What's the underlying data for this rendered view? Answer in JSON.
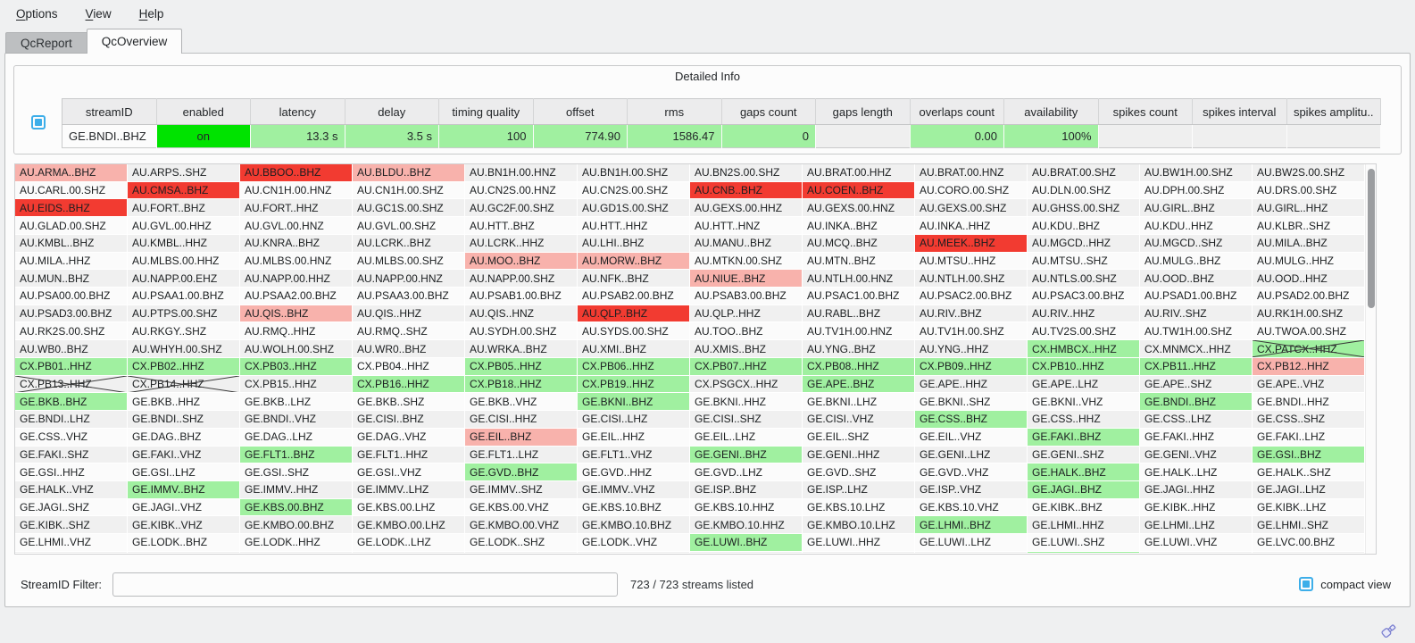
{
  "menu": {
    "items": [
      {
        "label": "Options"
      },
      {
        "label": "View"
      },
      {
        "label": "Help"
      }
    ]
  },
  "tabs": [
    {
      "label": "QcReport",
      "active": false
    },
    {
      "label": "QcOverview",
      "active": true
    }
  ],
  "detailed_info": {
    "title": "Detailed Info",
    "columns": [
      "streamID",
      "enabled",
      "latency",
      "delay",
      "timing quality",
      "offset",
      "rms",
      "gaps count",
      "gaps length",
      "overlaps count",
      "availability",
      "spikes count",
      "spikes interval",
      "spikes amplitu.."
    ],
    "row": {
      "streamID": "GE.BNDI..BHZ",
      "values": [
        {
          "text": "on",
          "state": "on"
        },
        {
          "text": "13.3 s",
          "state": "good"
        },
        {
          "text": "3.5 s",
          "state": "good"
        },
        {
          "text": "100",
          "state": "good"
        },
        {
          "text": "774.90",
          "state": "good"
        },
        {
          "text": "1586.47",
          "state": "good"
        },
        {
          "text": "0",
          "state": "good"
        },
        {
          "text": "",
          "state": "none"
        },
        {
          "text": "0.00",
          "state": "good"
        },
        {
          "text": "100%",
          "state": "good"
        },
        {
          "text": "",
          "state": "none"
        },
        {
          "text": "",
          "state": "none"
        },
        {
          "text": "",
          "state": "none"
        }
      ]
    }
  },
  "grid": {
    "state_legend": {
      "g": "good-green",
      "r": "alert-red",
      "p": "warn-pink",
      "x": "crossed-disabled",
      "gx": "good-green-crossed"
    },
    "rows": [
      [
        [
          "AU.ARMA..BHZ",
          "p"
        ],
        "AU.ARPS..SHZ",
        [
          "AU.BBOO..BHZ",
          "r"
        ],
        [
          "AU.BLDU..BHZ",
          "p"
        ],
        "AU.BN1H.00.HNZ",
        "AU.BN1H.00.SHZ",
        "AU.BN2S.00.SHZ",
        "AU.BRAT.00.HHZ",
        "AU.BRAT.00.HNZ",
        "AU.BRAT.00.SHZ",
        "AU.BW1H.00.SHZ",
        "AU.BW2S.00.SHZ"
      ],
      [
        "AU.CARL.00.SHZ",
        [
          "AU.CMSA..BHZ",
          "r"
        ],
        "AU.CN1H.00.HNZ",
        "AU.CN1H.00.SHZ",
        "AU.CN2S.00.HNZ",
        "AU.CN2S.00.SHZ",
        [
          "AU.CNB..BHZ",
          "r"
        ],
        [
          "AU.COEN..BHZ",
          "r"
        ],
        "AU.CORO.00.SHZ",
        "AU.DLN.00.SHZ",
        "AU.DPH.00.SHZ",
        "AU.DRS.00.SHZ"
      ],
      [
        [
          "AU.EIDS..BHZ",
          "r"
        ],
        "AU.FORT..BHZ",
        "AU.FORT..HHZ",
        "AU.GC1S.00.SHZ",
        "AU.GC2F.00.SHZ",
        "AU.GD1S.00.SHZ",
        "AU.GEXS.00.HHZ",
        "AU.GEXS.00.HNZ",
        "AU.GEXS.00.SHZ",
        "AU.GHSS.00.SHZ",
        "AU.GIRL..BHZ",
        "AU.GIRL..HHZ"
      ],
      [
        "AU.GLAD.00.SHZ",
        "AU.GVL.00.HHZ",
        "AU.GVL.00.HNZ",
        "AU.GVL.00.SHZ",
        "AU.HTT..BHZ",
        "AU.HTT..HHZ",
        "AU.HTT..HNZ",
        "AU.INKA..BHZ",
        "AU.INKA..HHZ",
        "AU.KDU..BHZ",
        "AU.KDU..HHZ",
        "AU.KLBR..SHZ"
      ],
      [
        "AU.KMBL..BHZ",
        "AU.KMBL..HHZ",
        "AU.KNRA..BHZ",
        "AU.LCRK..BHZ",
        "AU.LCRK..HHZ",
        "AU.LHI..BHZ",
        "AU.MANU..BHZ",
        "AU.MCQ..BHZ",
        [
          "AU.MEEK..BHZ",
          "r"
        ],
        "AU.MGCD..HHZ",
        "AU.MGCD..SHZ",
        "AU.MILA..BHZ"
      ],
      [
        "AU.MILA..HHZ",
        "AU.MLBS.00.HHZ",
        "AU.MLBS.00.HNZ",
        "AU.MLBS.00.SHZ",
        [
          "AU.MOO..BHZ",
          "p"
        ],
        [
          "AU.MORW..BHZ",
          "p"
        ],
        "AU.MTKN.00.SHZ",
        "AU.MTN..BHZ",
        "AU.MTSU..HHZ",
        "AU.MTSU..SHZ",
        "AU.MULG..BHZ",
        "AU.MULG..HHZ"
      ],
      [
        "AU.MUN..BHZ",
        "AU.NAPP.00.EHZ",
        "AU.NAPP.00.HHZ",
        "AU.NAPP.00.HNZ",
        "AU.NAPP.00.SHZ",
        "AU.NFK..BHZ",
        [
          "AU.NIUE..BHZ",
          "p"
        ],
        "AU.NTLH.00.HNZ",
        "AU.NTLH.00.SHZ",
        "AU.NTLS.00.SHZ",
        "AU.OOD..BHZ",
        "AU.OOD..HHZ"
      ],
      [
        "AU.PSA00.00.BHZ",
        "AU.PSAA1.00.BHZ",
        "AU.PSAA2.00.BHZ",
        "AU.PSAA3.00.BHZ",
        "AU.PSAB1.00.BHZ",
        "AU.PSAB2.00.BHZ",
        "AU.PSAB3.00.BHZ",
        "AU.PSAC1.00.BHZ",
        "AU.PSAC2.00.BHZ",
        "AU.PSAC3.00.BHZ",
        "AU.PSAD1.00.BHZ",
        "AU.PSAD2.00.BHZ"
      ],
      [
        "AU.PSAD3.00.BHZ",
        "AU.PTPS.00.SHZ",
        [
          "AU.QIS..BHZ",
          "p"
        ],
        "AU.QIS..HHZ",
        "AU.QIS..HNZ",
        [
          "AU.QLP..BHZ",
          "r"
        ],
        "AU.QLP..HHZ",
        "AU.RABL..BHZ",
        "AU.RIV..BHZ",
        "AU.RIV..HHZ",
        "AU.RIV..SHZ",
        "AU.RK1H.00.SHZ"
      ],
      [
        "AU.RK2S.00.SHZ",
        "AU.RKGY..SHZ",
        "AU.RMQ..HHZ",
        "AU.RMQ..SHZ",
        "AU.SYDH.00.SHZ",
        "AU.SYDS.00.SHZ",
        "AU.TOO..BHZ",
        "AU.TV1H.00.HNZ",
        "AU.TV1H.00.SHZ",
        "AU.TV2S.00.SHZ",
        "AU.TW1H.00.SHZ",
        "AU.TWOA.00.SHZ"
      ],
      [
        "AU.WB0..BHZ",
        "AU.WHYH.00.SHZ",
        "AU.WOLH.00.SHZ",
        "AU.WR0..BHZ",
        "AU.WRKA..BHZ",
        "AU.XMI..BHZ",
        "AU.XMIS..BHZ",
        "AU.YNG..BHZ",
        "AU.YNG..HHZ",
        [
          "CX.HMBCX..HHZ",
          "g"
        ],
        "CX.MNMCX..HHZ",
        [
          "CX.PATCX..HHZ",
          "gx"
        ]
      ],
      [
        [
          "CX.PB01..HHZ",
          "g"
        ],
        [
          "CX.PB02..HHZ",
          "g"
        ],
        [
          "CX.PB03..HHZ",
          "g"
        ],
        "CX.PB04..HHZ",
        [
          "CX.PB05..HHZ",
          "g"
        ],
        [
          "CX.PB06..HHZ",
          "g"
        ],
        [
          "CX.PB07..HHZ",
          "g"
        ],
        [
          "CX.PB08..HHZ",
          "g"
        ],
        [
          "CX.PB09..HHZ",
          "g"
        ],
        [
          "CX.PB10..HHZ",
          "g"
        ],
        [
          "CX.PB11..HHZ",
          "g"
        ],
        [
          "CX.PB12..HHZ",
          "p"
        ]
      ],
      [
        [
          "CX.PB13..HHZ",
          "x"
        ],
        [
          "CX.PB14..HHZ",
          "x"
        ],
        "CX.PB15..HHZ",
        [
          "CX.PB16..HHZ",
          "g"
        ],
        [
          "CX.PB18..HHZ",
          "g"
        ],
        [
          "CX.PB19..HHZ",
          "g"
        ],
        "CX.PSGCX..HHZ",
        [
          "GE.APE..BHZ",
          "g"
        ],
        "GE.APE..HHZ",
        "GE.APE..LHZ",
        "GE.APE..SHZ",
        "GE.APE..VHZ"
      ],
      [
        [
          "GE.BKB..BHZ",
          "g"
        ],
        "GE.BKB..HHZ",
        "GE.BKB..LHZ",
        "GE.BKB..SHZ",
        "GE.BKB..VHZ",
        [
          "GE.BKNI..BHZ",
          "g"
        ],
        "GE.BKNI..HHZ",
        "GE.BKNI..LHZ",
        "GE.BKNI..SHZ",
        "GE.BKNI..VHZ",
        [
          "GE.BNDI..BHZ",
          "g"
        ],
        "GE.BNDI..HHZ"
      ],
      [
        "GE.BNDI..LHZ",
        "GE.BNDI..SHZ",
        "GE.BNDI..VHZ",
        "GE.CISI..BHZ",
        "GE.CISI..HHZ",
        "GE.CISI..LHZ",
        "GE.CISI..SHZ",
        "GE.CISI..VHZ",
        [
          "GE.CSS..BHZ",
          "g"
        ],
        "GE.CSS..HHZ",
        "GE.CSS..LHZ",
        "GE.CSS..SHZ"
      ],
      [
        "GE.CSS..VHZ",
        "GE.DAG..BHZ",
        "GE.DAG..LHZ",
        "GE.DAG..VHZ",
        [
          "GE.EIL..BHZ",
          "p"
        ],
        "GE.EIL..HHZ",
        "GE.EIL..LHZ",
        "GE.EIL..SHZ",
        "GE.EIL..VHZ",
        [
          "GE.FAKI..BHZ",
          "g"
        ],
        "GE.FAKI..HHZ",
        "GE.FAKI..LHZ"
      ],
      [
        "GE.FAKI..SHZ",
        "GE.FAKI..VHZ",
        [
          "GE.FLT1..BHZ",
          "g"
        ],
        "GE.FLT1..HHZ",
        "GE.FLT1..LHZ",
        "GE.FLT1..VHZ",
        [
          "GE.GENI..BHZ",
          "g"
        ],
        "GE.GENI..HHZ",
        "GE.GENI..LHZ",
        "GE.GENI..SHZ",
        "GE.GENI..VHZ",
        [
          "GE.GSI..BHZ",
          "g"
        ]
      ],
      [
        "GE.GSI..HHZ",
        "GE.GSI..LHZ",
        "GE.GSI..SHZ",
        "GE.GSI..VHZ",
        [
          "GE.GVD..BHZ",
          "g"
        ],
        "GE.GVD..HHZ",
        "GE.GVD..LHZ",
        "GE.GVD..SHZ",
        "GE.GVD..VHZ",
        [
          "GE.HALK..BHZ",
          "g"
        ],
        "GE.HALK..LHZ",
        "GE.HALK..SHZ"
      ],
      [
        "GE.HALK..VHZ",
        [
          "GE.IMMV..BHZ",
          "g"
        ],
        "GE.IMMV..HHZ",
        "GE.IMMV..LHZ",
        "GE.IMMV..SHZ",
        "GE.IMMV..VHZ",
        "GE.ISP..BHZ",
        "GE.ISP..LHZ",
        "GE.ISP..VHZ",
        [
          "GE.JAGI..BHZ",
          "g"
        ],
        "GE.JAGI..HHZ",
        "GE.JAGI..LHZ"
      ],
      [
        "GE.JAGI..SHZ",
        "GE.JAGI..VHZ",
        [
          "GE.KBS.00.BHZ",
          "g"
        ],
        "GE.KBS.00.LHZ",
        "GE.KBS.00.VHZ",
        "GE.KBS.10.BHZ",
        "GE.KBS.10.HHZ",
        "GE.KBS.10.LHZ",
        "GE.KBS.10.VHZ",
        "GE.KIBK..BHZ",
        "GE.KIBK..HHZ",
        "GE.KIBK..LHZ"
      ],
      [
        "GE.KIBK..SHZ",
        "GE.KIBK..VHZ",
        "GE.KMBO.00.BHZ",
        "GE.KMBO.00.LHZ",
        "GE.KMBO.00.VHZ",
        "GE.KMBO.10.BHZ",
        "GE.KMBO.10.HHZ",
        "GE.KMBO.10.LHZ",
        [
          "GE.LHMI..BHZ",
          "g"
        ],
        "GE.LHMI..HHZ",
        "GE.LHMI..LHZ",
        "GE.LHMI..SHZ"
      ],
      [
        "GE.LHMI..VHZ",
        "GE.LODK..BHZ",
        "GE.LODK..HHZ",
        "GE.LODK..LHZ",
        "GE.LODK..SHZ",
        "GE.LODK..VHZ",
        [
          "GE.LUWI..BHZ",
          "g"
        ],
        "GE.LUWI..HHZ",
        "GE.LUWI..LHZ",
        "GE.LUWI..SHZ",
        "GE.LUWI..VHZ",
        "GE.LVC.00.BHZ"
      ]
    ],
    "partial_row": {
      "green_column": 10
    }
  },
  "footer": {
    "filter_label": "StreamID Filter:",
    "filter_value": "",
    "count_text": "723 / 723 streams listed",
    "compact_view_label": "compact view",
    "compact_view_checked": true
  },
  "colors": {
    "accent": "#3daee9",
    "good": "#a0f0a0",
    "warn": "#f8b2ac",
    "bad": "#f23b31",
    "enabled_on": "#00e300"
  }
}
